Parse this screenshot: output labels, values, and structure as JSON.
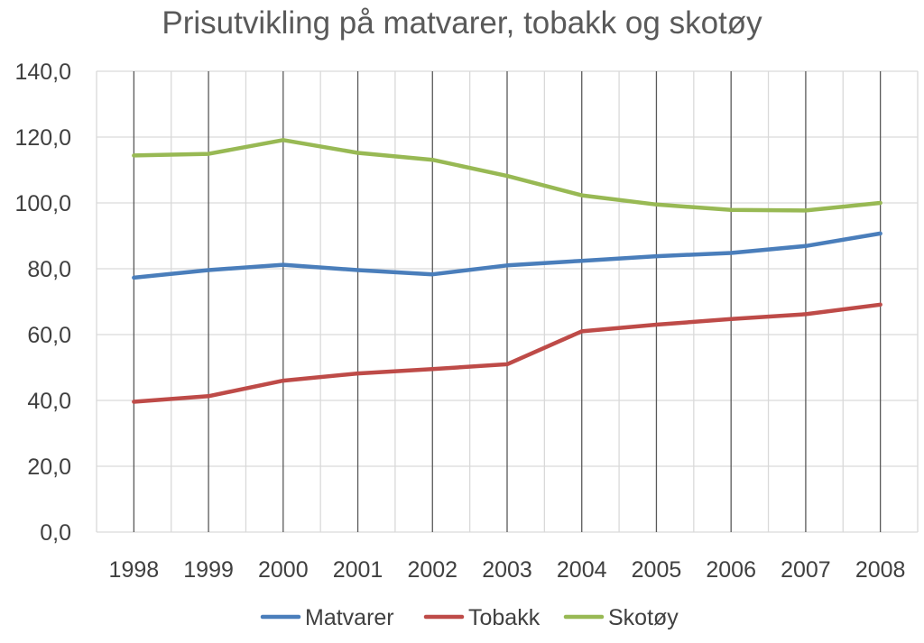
{
  "chart_data": {
    "type": "line",
    "title": "Prisutvikling på matvarer, tobakk og skotøy",
    "xlabel": "",
    "ylabel": "",
    "categories": [
      "1998",
      "1999",
      "2000",
      "2001",
      "2002",
      "2003",
      "2004",
      "2005",
      "2006",
      "2007",
      "2008"
    ],
    "ylim": [
      0,
      140
    ],
    "yticks": [
      "0,0",
      "20,0",
      "40,0",
      "60,0",
      "80,0",
      "100,0",
      "120,0",
      "140,0"
    ],
    "grid": true,
    "legend_position": "bottom",
    "series": [
      {
        "name": "Matvarer",
        "color": "#4a7ebb",
        "values": [
          77.3,
          79.6,
          81.2,
          79.6,
          78.3,
          81.0,
          82.4,
          83.8,
          84.8,
          86.9,
          90.7
        ]
      },
      {
        "name": "Tobakk",
        "color": "#be4b48",
        "values": [
          39.6,
          41.3,
          46.0,
          48.2,
          49.5,
          51.0,
          61.0,
          63.0,
          64.7,
          66.2,
          69.1
        ]
      },
      {
        "name": "Skotøy",
        "color": "#98b954",
        "values": [
          114.4,
          114.9,
          119.1,
          115.2,
          113.1,
          108.2,
          102.3,
          99.5,
          97.9,
          97.7,
          100.0
        ]
      }
    ]
  }
}
